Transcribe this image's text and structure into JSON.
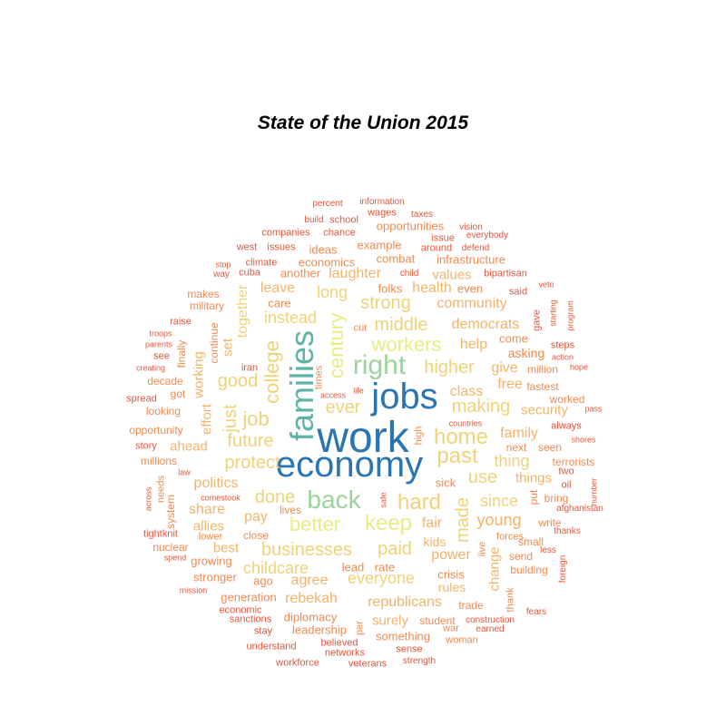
{
  "title": "State of the Union 2015",
  "colors": {
    "c1": "#d7301f",
    "c2": "#e5553a",
    "c3": "#f08a50",
    "c4": "#f4b36a",
    "c5": "#f1d278",
    "c6": "#e9ec86",
    "c7": "#9bd49a",
    "c8": "#5fb3a6",
    "c9": "#2b75b2"
  },
  "words": [
    {
      "t": "work",
      "c": "c9",
      "s": 5
    },
    {
      "t": "economy",
      "c": "c9",
      "s": 5
    },
    {
      "t": "jobs",
      "c": "c9",
      "s": 5
    },
    {
      "t": "families",
      "c": "c8",
      "s": 4
    },
    {
      "t": "right",
      "c": "c7",
      "s": 4
    },
    {
      "t": "back",
      "c": "c7",
      "s": 4
    },
    {
      "t": "keep",
      "c": "c6",
      "s": 3
    },
    {
      "t": "better",
      "c": "c6",
      "s": 3
    },
    {
      "t": "workers",
      "c": "c6",
      "s": 3
    },
    {
      "t": "century",
      "c": "c6",
      "s": 3
    },
    {
      "t": "home",
      "c": "c5",
      "s": 3
    },
    {
      "t": "past",
      "c": "c5",
      "s": 3
    },
    {
      "t": "college",
      "c": "c5",
      "s": 3
    },
    {
      "t": "hard",
      "c": "c5",
      "s": 3
    },
    {
      "t": "businesses",
      "c": "c5",
      "s": 3
    },
    {
      "t": "middle",
      "c": "c5",
      "s": 3
    },
    {
      "t": "strong",
      "c": "c5",
      "s": 3
    },
    {
      "t": "higher",
      "c": "c5",
      "s": 3
    },
    {
      "t": "job",
      "c": "c5",
      "s": 3
    },
    {
      "t": "made",
      "c": "c5",
      "s": 3
    },
    {
      "t": "future",
      "c": "c5",
      "s": 3
    },
    {
      "t": "just",
      "c": "c5",
      "s": 3
    },
    {
      "t": "ever",
      "c": "c5",
      "s": 3
    },
    {
      "t": "done",
      "c": "c5",
      "s": 3
    },
    {
      "t": "paid",
      "c": "c5",
      "s": 3
    },
    {
      "t": "everyone",
      "c": "c5",
      "s": 3
    },
    {
      "t": "use",
      "c": "c5",
      "s": 3
    },
    {
      "t": "making",
      "c": "c5",
      "s": 3
    },
    {
      "t": "good",
      "c": "c5",
      "s": 3
    },
    {
      "t": "protect",
      "c": "c5",
      "s": 3
    },
    {
      "t": "instead",
      "c": "c5",
      "s": 3
    },
    {
      "t": "long",
      "c": "c5",
      "s": 3
    },
    {
      "t": "thing",
      "c": "c5",
      "s": 3
    },
    {
      "t": "since",
      "c": "c5",
      "s": 3
    },
    {
      "t": "childcare",
      "c": "c5",
      "s": 3
    },
    {
      "t": "together",
      "c": "c5",
      "s": 2
    },
    {
      "t": "young",
      "c": "c4",
      "s": 3
    },
    {
      "t": "laughter",
      "c": "c4",
      "s": 2
    },
    {
      "t": "health",
      "c": "c4",
      "s": 2
    },
    {
      "t": "community",
      "c": "c4",
      "s": 2
    },
    {
      "t": "democrats",
      "c": "c4",
      "s": 2
    },
    {
      "t": "help",
      "c": "c4",
      "s": 2
    },
    {
      "t": "class",
      "c": "c4",
      "s": 2
    },
    {
      "t": "free",
      "c": "c4",
      "s": 2
    },
    {
      "t": "family",
      "c": "c4",
      "s": 2
    },
    {
      "t": "leave",
      "c": "c4",
      "s": 2
    },
    {
      "t": "pay",
      "c": "c4",
      "s": 2
    },
    {
      "t": "fair",
      "c": "c4",
      "s": 2
    },
    {
      "t": "power",
      "c": "c4",
      "s": 2
    },
    {
      "t": "agree",
      "c": "c4",
      "s": 2
    },
    {
      "t": "rebekah",
      "c": "c4",
      "s": 2
    },
    {
      "t": "republicans",
      "c": "c4",
      "s": 2
    },
    {
      "t": "politics",
      "c": "c4",
      "s": 2
    },
    {
      "t": "share",
      "c": "c4",
      "s": 2
    },
    {
      "t": "give",
      "c": "c4",
      "s": 2
    },
    {
      "t": "change",
      "c": "c4",
      "s": 2
    },
    {
      "t": "effort",
      "c": "c4",
      "s": 2
    },
    {
      "t": "working",
      "c": "c4",
      "s": 2
    },
    {
      "t": "things",
      "c": "c4",
      "s": 2
    },
    {
      "t": "security",
      "c": "c4",
      "s": 2
    },
    {
      "t": "values",
      "c": "c4",
      "s": 2
    },
    {
      "t": "surely",
      "c": "c4",
      "s": 2
    },
    {
      "t": "set",
      "c": "c4",
      "s": 2
    },
    {
      "t": "ahead",
      "c": "c4",
      "s": 2
    },
    {
      "t": "allies",
      "c": "c4",
      "s": 2
    },
    {
      "t": "best",
      "c": "c4",
      "s": 2
    },
    {
      "t": "kids",
      "c": "c4",
      "s": 2
    },
    {
      "t": "rules",
      "c": "c4",
      "s": 2
    },
    {
      "t": "crisis",
      "c": "c3",
      "s": 2
    },
    {
      "t": "asking",
      "c": "c3",
      "s": 2
    },
    {
      "t": "come",
      "c": "c3",
      "s": 2
    },
    {
      "t": "even",
      "c": "c3",
      "s": 2
    },
    {
      "t": "folks",
      "c": "c3",
      "s": 2
    },
    {
      "t": "another",
      "c": "c3",
      "s": 2
    },
    {
      "t": "care",
      "c": "c3",
      "s": 2
    },
    {
      "t": "sick",
      "c": "c3",
      "s": 2
    },
    {
      "t": "lead",
      "c": "c3",
      "s": 2
    },
    {
      "t": "rate",
      "c": "c3",
      "s": 2
    },
    {
      "t": "lives",
      "c": "c3",
      "s": 1
    },
    {
      "t": "close",
      "c": "c3",
      "s": 1
    },
    {
      "t": "growing",
      "c": "c3",
      "s": 2
    },
    {
      "t": "stronger",
      "c": "c3",
      "s": 2
    },
    {
      "t": "ago",
      "c": "c3",
      "s": 2
    },
    {
      "t": "generation",
      "c": "c3",
      "s": 1
    },
    {
      "t": "diplomacy",
      "c": "c3",
      "s": 2
    },
    {
      "t": "leadership",
      "c": "c3",
      "s": 1
    },
    {
      "t": "something",
      "c": "c3",
      "s": 1
    },
    {
      "t": "student",
      "c": "c3",
      "s": 1
    },
    {
      "t": "trade",
      "c": "c3",
      "s": 1
    },
    {
      "t": "next",
      "c": "c3",
      "s": 1
    },
    {
      "t": "seen",
      "c": "c3",
      "s": 1
    },
    {
      "t": "put",
      "c": "c3",
      "s": 1
    },
    {
      "t": "bring",
      "c": "c3",
      "s": 1
    },
    {
      "t": "send",
      "c": "c3",
      "s": 1
    },
    {
      "t": "small",
      "c": "c3",
      "s": 1
    },
    {
      "t": "forces",
      "c": "c3",
      "s": 1
    },
    {
      "t": "live",
      "c": "c3",
      "s": 1
    },
    {
      "t": "building",
      "c": "c3",
      "s": 1
    },
    {
      "t": "thank",
      "c": "c3",
      "s": 1
    },
    {
      "t": "write",
      "c": "c3",
      "s": 1
    },
    {
      "t": "continue",
      "c": "c3",
      "s": 1
    },
    {
      "t": "finally",
      "c": "c3",
      "s": 1
    },
    {
      "t": "combat",
      "c": "c3",
      "s": 1
    },
    {
      "t": "infrastructure",
      "c": "c3",
      "s": 1
    },
    {
      "t": "economics",
      "c": "c3",
      "s": 1
    },
    {
      "t": "example",
      "c": "c3",
      "s": 1
    },
    {
      "t": "opportunities",
      "c": "c3",
      "s": 1
    },
    {
      "t": "ideas",
      "c": "c3",
      "s": 1
    },
    {
      "t": "million",
      "c": "c3",
      "s": 1
    },
    {
      "t": "fastest",
      "c": "c3",
      "s": 1
    },
    {
      "t": "worked",
      "c": "c3",
      "s": 1
    },
    {
      "t": "terrorists",
      "c": "c3",
      "s": 1
    },
    {
      "t": "nuclear",
      "c": "c3",
      "s": 1
    },
    {
      "t": "lower",
      "c": "c3",
      "s": 1
    },
    {
      "t": "system",
      "c": "c3",
      "s": 1
    },
    {
      "t": "needs",
      "c": "c3",
      "s": 1
    },
    {
      "t": "millions",
      "c": "c3",
      "s": 1
    },
    {
      "t": "opportunity",
      "c": "c3",
      "s": 1
    },
    {
      "t": "looking",
      "c": "c3",
      "s": 1
    },
    {
      "t": "got",
      "c": "c3",
      "s": 1
    },
    {
      "t": "decade",
      "c": "c3",
      "s": 1
    },
    {
      "t": "military",
      "c": "c3",
      "s": 1
    },
    {
      "t": "makes",
      "c": "c3",
      "s": 1
    },
    {
      "t": "cut",
      "c": "c3",
      "s": 1
    },
    {
      "t": "times",
      "c": "c3",
      "s": 1
    },
    {
      "t": "high",
      "c": "c3",
      "s": 1
    },
    {
      "t": "woman",
      "c": "c3",
      "s": 1
    },
    {
      "t": "war",
      "c": "c3",
      "s": 1
    },
    {
      "t": "per",
      "c": "c3",
      "s": 1
    },
    {
      "t": "sense",
      "c": "c2",
      "s": 1
    },
    {
      "t": "believed",
      "c": "c2",
      "s": 1
    },
    {
      "t": "networks",
      "c": "c2",
      "s": 1
    },
    {
      "t": "stay",
      "c": "c2",
      "s": 1
    },
    {
      "t": "understand",
      "c": "c2",
      "s": 1
    },
    {
      "t": "workforce",
      "c": "c2",
      "s": 1
    },
    {
      "t": "veterans",
      "c": "c2",
      "s": 1
    },
    {
      "t": "strength",
      "c": "c2",
      "s": 0
    },
    {
      "t": "earned",
      "c": "c2",
      "s": 0
    },
    {
      "t": "construction",
      "c": "c2",
      "s": 0
    },
    {
      "t": "fears",
      "c": "c2",
      "s": 0
    },
    {
      "t": "foreign",
      "c": "c2",
      "s": 0
    },
    {
      "t": "less",
      "c": "c2",
      "s": 0
    },
    {
      "t": "thanks",
      "c": "c2",
      "s": 0
    },
    {
      "t": "afghanistan",
      "c": "c2",
      "s": 0
    },
    {
      "t": "oil",
      "c": "c2",
      "s": 1
    },
    {
      "t": "two",
      "c": "c2",
      "s": 1
    },
    {
      "t": "number",
      "c": "c2",
      "s": 0
    },
    {
      "t": "shores",
      "c": "c2",
      "s": 0
    },
    {
      "t": "always",
      "c": "c2",
      "s": 1
    },
    {
      "t": "pass",
      "c": "c2",
      "s": 0
    },
    {
      "t": "hope",
      "c": "c2",
      "s": 0
    },
    {
      "t": "action",
      "c": "c2",
      "s": 0
    },
    {
      "t": "steps",
      "c": "c2",
      "s": 1
    },
    {
      "t": "program",
      "c": "c2",
      "s": 0
    },
    {
      "t": "starting",
      "c": "c2",
      "s": 0
    },
    {
      "t": "gave",
      "c": "c2",
      "s": 1
    },
    {
      "t": "veto",
      "c": "c2",
      "s": 0
    },
    {
      "t": "said",
      "c": "c2",
      "s": 1
    },
    {
      "t": "bipartisan",
      "c": "c2",
      "s": 1
    },
    {
      "t": "defend",
      "c": "c2",
      "s": 0
    },
    {
      "t": "around",
      "c": "c2",
      "s": 1
    },
    {
      "t": "everybody",
      "c": "c2",
      "s": 0
    },
    {
      "t": "issue",
      "c": "c2",
      "s": 1
    },
    {
      "t": "vision",
      "c": "c2",
      "s": 0
    },
    {
      "t": "taxes",
      "c": "c2",
      "s": 0
    },
    {
      "t": "wages",
      "c": "c2",
      "s": 1
    },
    {
      "t": "information",
      "c": "c2",
      "s": 0
    },
    {
      "t": "percent",
      "c": "c2",
      "s": 0
    },
    {
      "t": "build",
      "c": "c2",
      "s": 0
    },
    {
      "t": "school",
      "c": "c2",
      "s": 1
    },
    {
      "t": "chance",
      "c": "c2",
      "s": 1
    },
    {
      "t": "companies",
      "c": "c2",
      "s": 1
    },
    {
      "t": "west",
      "c": "c2",
      "s": 1
    },
    {
      "t": "issues",
      "c": "c2",
      "s": 1
    },
    {
      "t": "stop",
      "c": "c2",
      "s": 0
    },
    {
      "t": "climate",
      "c": "c2",
      "s": 1
    },
    {
      "t": "way",
      "c": "c2",
      "s": 0
    },
    {
      "t": "cuba",
      "c": "c2",
      "s": 1
    },
    {
      "t": "child",
      "c": "c2",
      "s": 0
    },
    {
      "t": "raise",
      "c": "c2",
      "s": 1
    },
    {
      "t": "troops",
      "c": "c2",
      "s": 0
    },
    {
      "t": "parents",
      "c": "c2",
      "s": 0
    },
    {
      "t": "see",
      "c": "c2",
      "s": 1
    },
    {
      "t": "creating",
      "c": "c2",
      "s": 0
    },
    {
      "t": "iran",
      "c": "c2",
      "s": 1
    },
    {
      "t": "spread",
      "c": "c2",
      "s": 1
    },
    {
      "t": "story",
      "c": "c2",
      "s": 1
    },
    {
      "t": "law",
      "c": "c2",
      "s": 0
    },
    {
      "t": "across",
      "c": "c2",
      "s": 0
    },
    {
      "t": "comestook",
      "c": "c2",
      "s": 0
    },
    {
      "t": "tightknit",
      "c": "c2",
      "s": 1
    },
    {
      "t": "spend",
      "c": "c2",
      "s": 0
    },
    {
      "t": "mission",
      "c": "c2",
      "s": 0
    },
    {
      "t": "economic",
      "c": "c2",
      "s": 1
    },
    {
      "t": "sanctions",
      "c": "c2",
      "s": 1
    },
    {
      "t": "access",
      "c": "c2",
      "s": 0
    },
    {
      "t": "life",
      "c": "c2",
      "s": 0
    },
    {
      "t": "countries",
      "c": "c2",
      "s": 0
    },
    {
      "t": "safe",
      "c": "c2",
      "s": 0
    }
  ]
}
